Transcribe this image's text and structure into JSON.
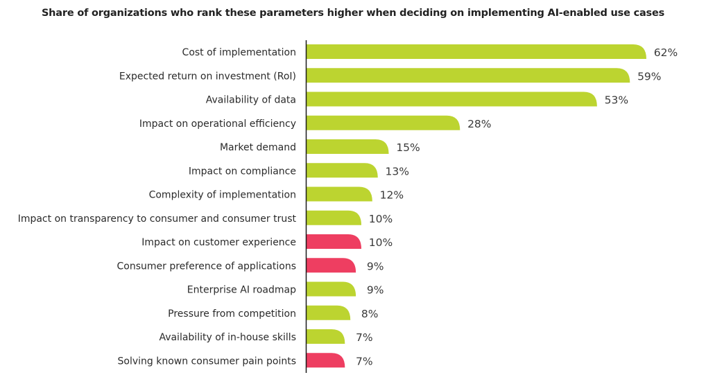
{
  "chart_data": {
    "type": "bar",
    "orientation": "horizontal",
    "title": "Share of organizations who rank these parameters higher when deciding on implementing AI-enabled use cases",
    "xlabel": "",
    "ylabel": "",
    "xlim": [
      0,
      62
    ],
    "grid": false,
    "unit": "%",
    "categories": [
      "Cost of implementation",
      "Expected return on investment (RoI)",
      "Availability of data",
      "Impact on operational efficiency",
      "Market demand",
      "Impact on compliance",
      "Complexity of implementation",
      "Impact on transparency to consumer and consumer trust",
      "Impact on customer experience",
      "Consumer preference of applications",
      "Enterprise AI roadmap",
      "Pressure from competition",
      "Availability of in-house skills",
      "Solving known consumer pain points"
    ],
    "values": [
      62,
      59,
      53,
      28,
      15,
      13,
      12,
      10,
      10,
      9,
      9,
      8,
      7,
      7
    ],
    "value_labels": [
      "62%",
      "59%",
      "53%",
      "28%",
      "15%",
      "13%",
      "12%",
      "10%",
      "10%",
      "9%",
      "9%",
      "8%",
      "7%",
      "7%"
    ],
    "bar_colors": [
      "#bcd430",
      "#bcd430",
      "#bcd430",
      "#bcd430",
      "#bcd430",
      "#bcd430",
      "#bcd430",
      "#bcd430",
      "#ee3e61",
      "#ee3e61",
      "#bcd430",
      "#bcd430",
      "#bcd430",
      "#ee3e61"
    ]
  },
  "colors": {
    "green": "#bcd430",
    "pink": "#ee3e61",
    "axis": "#1a1a1a"
  }
}
